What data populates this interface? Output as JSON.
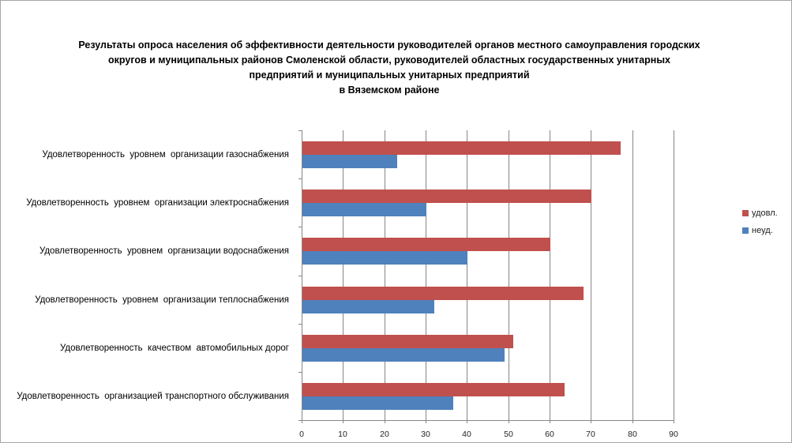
{
  "chart_data": {
    "type": "bar",
    "orientation": "horizontal",
    "title": "Результаты опроса населения об эффективности деятельности руководителей органов местного самоуправления городских округов и муниципальных районов Смоленской области, руководителей областных государственных унитарных предприятий и муниципальных унитарных предприятий в Вяземском районе",
    "title_lines": [
      "Результаты опроса населения об эффективности деятельности руководителей органов местного самоуправления городских",
      "округов и муниципальных районов Смоленской области, руководителей областных государственных унитарных",
      "предприятий и муниципальных унитарных предприятий",
      "в Вяземском районе"
    ],
    "categories": [
      "Удовлетворенность  уровнем  организации газоснабжения",
      "Удовлетворенность  уровнем  организации электроснабжения",
      "Удовлетворенность  уровнем  организации водоснабжения",
      "Удовлетворенность  уровнем  организации теплоснабжения",
      "Удовлетворенность  качеством  автомобильных дорог",
      "Удовлетворенность  организацией транспортного обслуживания"
    ],
    "series": [
      {
        "key": "udovl",
        "name": "удовл.",
        "color": "#C0504D",
        "values": [
          77,
          70,
          60,
          68,
          51,
          63.5
        ]
      },
      {
        "key": "neud",
        "name": "неуд.",
        "color": "#4F81BD",
        "values": [
          23,
          30,
          40,
          32,
          49,
          36.5
        ]
      }
    ],
    "x_axis": {
      "min": 0,
      "max": 90,
      "tick_interval": 10,
      "tick_labels": [
        "0",
        "10",
        "20",
        "30",
        "40",
        "50",
        "60",
        "70",
        "80",
        "90"
      ]
    },
    "grid": true,
    "legend_position": "right",
    "colors": {
      "gridline": "#868686",
      "axis": "#868686",
      "chart_border": "#A6A6A6",
      "title_text": "#000000",
      "category_text": "#000000",
      "tick_text": "#1F1F1F"
    }
  }
}
